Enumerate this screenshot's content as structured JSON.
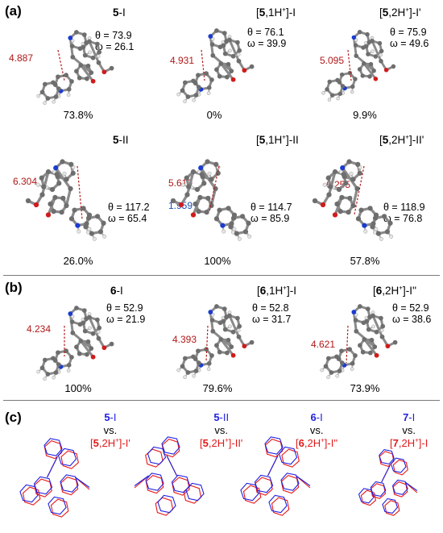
{
  "panel_a": {
    "label": "(a)",
    "cells": [
      {
        "cmpd": "5",
        "suffix": "-I",
        "protons": "",
        "prime": "",
        "theta": "θ = 73.9",
        "omega": "ω = 26.1",
        "dist": "4.887",
        "dist2": "",
        "pct": "73.8%"
      },
      {
        "cmpd": "5",
        "suffix": "]-I",
        "protons": ",1H",
        "prime": "",
        "theta": "θ = 76.1",
        "omega": "ω = 39.9",
        "dist": "4.931",
        "dist2": "",
        "pct": "0%"
      },
      {
        "cmpd": "5",
        "suffix": "]-I'",
        "protons": ",2H",
        "prime": "",
        "theta": "θ = 75.9",
        "omega": "ω = 49.6",
        "dist": "5.095",
        "dist2": "",
        "pct": "9.9%"
      },
      {
        "cmpd": "5",
        "suffix": "-II",
        "protons": "",
        "prime": "",
        "theta": "θ = 117.2",
        "omega": "ω = 65.4",
        "dist": "6.304",
        "dist2": "",
        "pct": "26.0%"
      },
      {
        "cmpd": "5",
        "suffix": "]-II",
        "protons": ",1H",
        "prime": "",
        "theta": "θ = 114.7",
        "omega": "ω = 85.9",
        "dist": "5.619",
        "dist2": "1.959",
        "pct": "100%"
      },
      {
        "cmpd": "5",
        "suffix": "]-II'",
        "protons": ",2H",
        "prime": "",
        "theta": "θ = 118.9",
        "omega": "ω = 76.8",
        "dist": "6.255",
        "dist2": "",
        "pct": "57.8%"
      }
    ]
  },
  "panel_b": {
    "label": "(b)",
    "cells": [
      {
        "cmpd": "6",
        "suffix": "-I",
        "protons": "",
        "theta": "θ = 52.9",
        "omega": "ω = 21.9",
        "dist": "4.234",
        "pct": "100%"
      },
      {
        "cmpd": "6",
        "suffix": "]-I",
        "protons": ",1H",
        "theta": "θ = 52.8",
        "omega": "ω = 31.7",
        "dist": "4.393",
        "pct": "79.6%"
      },
      {
        "cmpd": "6",
        "suffix": "]-I''",
        "protons": ",2H",
        "theta": "θ = 52.9",
        "omega": "ω = 38.6",
        "dist": "4.621",
        "pct": "73.9%"
      }
    ]
  },
  "panel_c": {
    "label": "(c)",
    "overlays": [
      {
        "top": "5-I",
        "vs": "vs.",
        "bottom": "[5,2H+]-I'"
      },
      {
        "top": "5-II",
        "vs": "vs.",
        "bottom": "[5,2H+]-II'"
      },
      {
        "top": "6-I",
        "vs": "vs.",
        "bottom": "[6,2H+]-I''"
      },
      {
        "top": "7-I",
        "vs": "vs.",
        "bottom": "[7,2H+]-I"
      }
    ]
  },
  "plus": "+",
  "colors": {
    "carbon": "#6e6e6e",
    "hydrogen": "#e6e6e6",
    "nitrogen": "#1a3ccf",
    "oxygen": "#d01c1c",
    "distance_red": "#b01818",
    "distance_blue": "#1a4fb8",
    "overlay_blue": "#2020e0",
    "overlay_red": "#e81818"
  }
}
